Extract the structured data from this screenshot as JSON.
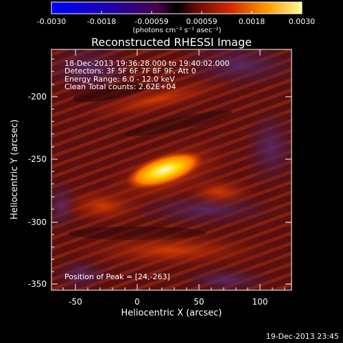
{
  "colorbar": {
    "ticks": [
      "-0.0030",
      "-0.0018",
      "-0.00059",
      "0.00059",
      "0.0018",
      "0.0030"
    ],
    "units_label": "(photons cm⁻² s⁻¹ asec⁻²)"
  },
  "plot": {
    "title": "Reconstructed RHESSI Image",
    "xlabel": "Heliocentric X (arcsec)",
    "ylabel": "Heliocentric Y (arcsec)",
    "xticks": [
      "-50",
      "0",
      "50",
      "100"
    ],
    "yticks": [
      "-200",
      "-250",
      "-300",
      "-350"
    ],
    "xlim": [
      -65,
      125
    ],
    "ylim": [
      -355,
      -175
    ]
  },
  "annotations": {
    "time_range": "18-Dec-2013 19:36:28.000 to 19:40:02.000",
    "detectors": "Detectors: 3F 5F 6F 7F 8F 9F, Att 0",
    "energy": "Energy Range: 6.0 - 12.0 keV",
    "clean": "Clean     Total counts: 2.62E+04",
    "peak": "Position of Peak = [24,-263]"
  },
  "footer": {
    "timestamp": "19-Dec-2013 23:45"
  }
}
